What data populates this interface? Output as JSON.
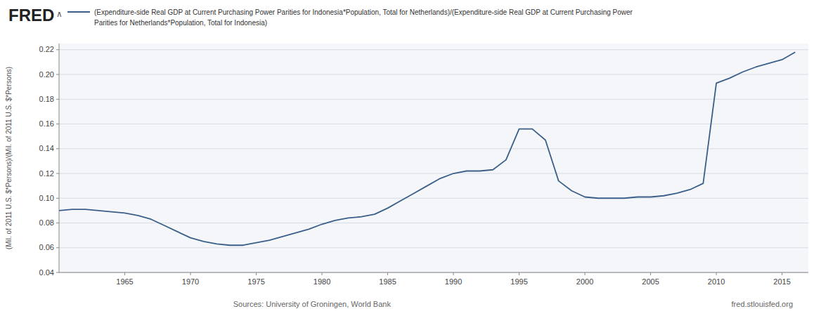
{
  "chart_data": {
    "type": "line",
    "title": "(Expenditure-side Real GDP at Current Purchasing Power Parities for Indonesia*Population, Total for Netherlands)/(Expenditure-side Real GDP at Current Purchasing Power",
    "subtitle": "Parities for Netherlands*Population, Total for Indonesia)",
    "y_label": "(Mil. of 2011 U.S. $*Persons)/(Mil. of 2011 U.S. $*Persons)",
    "annotations": [
      "FRED",
      "∧",
      "Sources: University of Groningen, World Bank",
      "fred.stlouisfed.org"
    ],
    "color": "#3b5f8a",
    "grid": true,
    "xlim": [
      1960,
      2017
    ],
    "xticks": [
      1965,
      1970,
      1975,
      1980,
      1985,
      1990,
      1995,
      2000,
      2005,
      2010,
      2015
    ],
    "ylim": [
      0.04,
      0.225
    ],
    "yticks": [
      0.04,
      0.06,
      0.08,
      {
        "value": 0.1,
        "label": "0.10"
      },
      0.12,
      0.14,
      0.16,
      0.18,
      {
        "value": 0.2,
        "label": "0.20"
      },
      0.22
    ],
    "x": [
      1960,
      1961,
      1962,
      1963,
      1964,
      1965,
      1966,
      1967,
      1968,
      1969,
      1970,
      1971,
      1972,
      1973,
      1974,
      1975,
      1976,
      1977,
      1978,
      1979,
      1980,
      1981,
      1982,
      1983,
      1984,
      1985,
      1986,
      1987,
      1988,
      1989,
      1990,
      1991,
      1992,
      1993,
      1994,
      1995,
      1996,
      1997,
      1998,
      1999,
      2000,
      2001,
      2002,
      2003,
      2004,
      2005,
      2006,
      2007,
      2008,
      2009,
      2010,
      2011,
      2012,
      2013,
      2014,
      2015,
      2016
    ],
    "values": [
      0.09,
      0.091,
      0.091,
      0.09,
      0.089,
      0.088,
      0.086,
      0.083,
      0.078,
      0.073,
      0.068,
      0.065,
      0.063,
      0.062,
      0.062,
      0.064,
      0.066,
      0.069,
      0.072,
      0.075,
      0.079,
      0.082,
      0.084,
      0.085,
      0.087,
      0.092,
      0.098,
      0.104,
      0.11,
      0.116,
      0.12,
      0.122,
      0.122,
      0.123,
      0.131,
      0.156,
      0.156,
      0.147,
      0.114,
      0.106,
      0.101,
      0.1,
      0.1,
      0.1,
      0.101,
      0.101,
      0.102,
      0.104,
      0.107,
      0.112,
      0.193,
      0.197,
      0.202,
      0.206,
      0.209,
      0.212,
      0.218
    ]
  }
}
